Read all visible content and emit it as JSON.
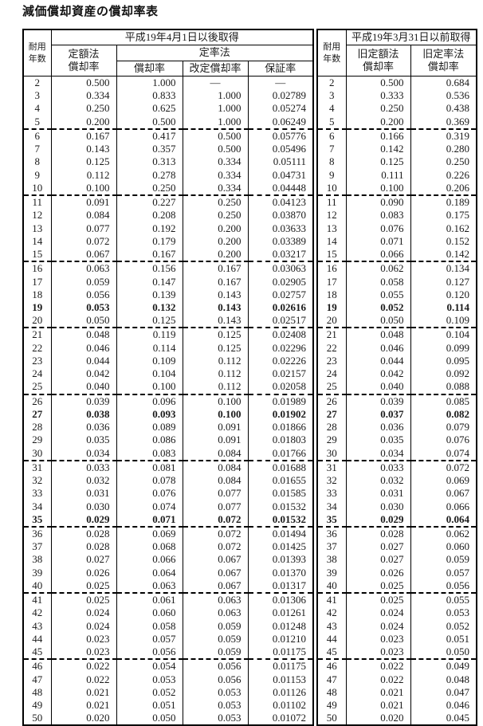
{
  "page_title": "減価償却資産の償却率表",
  "colors": {
    "background": "#ffffff",
    "border": "#000000",
    "text": "#1a1a1a"
  },
  "table": {
    "left": {
      "period_header": "平成19年4月1日以後取得",
      "year_label_l1": "耐用",
      "year_label_l2": "年数",
      "straight_line_l1": "定額法",
      "straight_line_l2": "償却率",
      "declining_group": "定率法",
      "declining_rate": "償却率",
      "revised_rate": "改定償却率",
      "guarantee_rate": "保証率"
    },
    "right": {
      "period_header": "平成19年3月31日以前取得",
      "year_label_l1": "耐用",
      "year_label_l2": "年数",
      "old_straight_l1": "旧定額法",
      "old_straight_l2": "償却率",
      "old_declining_l1": "旧定率法",
      "old_declining_l2": "償却率"
    },
    "bold_years": [
      19,
      27,
      35
    ],
    "group_end_years": [
      5,
      10,
      15,
      20,
      25,
      30,
      35,
      40,
      45
    ],
    "rows": [
      [
        2,
        "0.500",
        "1.000",
        "—",
        "—",
        "0.500",
        "0.684"
      ],
      [
        3,
        "0.334",
        "0.833",
        "1.000",
        "0.02789",
        "0.333",
        "0.536"
      ],
      [
        4,
        "0.250",
        "0.625",
        "1.000",
        "0.05274",
        "0.250",
        "0.438"
      ],
      [
        5,
        "0.200",
        "0.500",
        "1.000",
        "0.06249",
        "0.200",
        "0.369"
      ],
      [
        6,
        "0.167",
        "0.417",
        "0.500",
        "0.05776",
        "0.166",
        "0.319"
      ],
      [
        7,
        "0.143",
        "0.357",
        "0.500",
        "0.05496",
        "0.142",
        "0.280"
      ],
      [
        8,
        "0.125",
        "0.313",
        "0.334",
        "0.05111",
        "0.125",
        "0.250"
      ],
      [
        9,
        "0.112",
        "0.278",
        "0.334",
        "0.04731",
        "0.111",
        "0.226"
      ],
      [
        10,
        "0.100",
        "0.250",
        "0.334",
        "0.04448",
        "0.100",
        "0.206"
      ],
      [
        11,
        "0.091",
        "0.227",
        "0.250",
        "0.04123",
        "0.090",
        "0.189"
      ],
      [
        12,
        "0.084",
        "0.208",
        "0.250",
        "0.03870",
        "0.083",
        "0.175"
      ],
      [
        13,
        "0.077",
        "0.192",
        "0.200",
        "0.03633",
        "0.076",
        "0.162"
      ],
      [
        14,
        "0.072",
        "0.179",
        "0.200",
        "0.03389",
        "0.071",
        "0.152"
      ],
      [
        15,
        "0.067",
        "0.167",
        "0.200",
        "0.03217",
        "0.066",
        "0.142"
      ],
      [
        16,
        "0.063",
        "0.156",
        "0.167",
        "0.03063",
        "0.062",
        "0.134"
      ],
      [
        17,
        "0.059",
        "0.147",
        "0.167",
        "0.02905",
        "0.058",
        "0.127"
      ],
      [
        18,
        "0.056",
        "0.139",
        "0.143",
        "0.02757",
        "0.055",
        "0.120"
      ],
      [
        19,
        "0.053",
        "0.132",
        "0.143",
        "0.02616",
        "0.052",
        "0.114"
      ],
      [
        20,
        "0.050",
        "0.125",
        "0.143",
        "0.02517",
        "0.050",
        "0.109"
      ],
      [
        21,
        "0.048",
        "0.119",
        "0.125",
        "0.02408",
        "0.048",
        "0.104"
      ],
      [
        22,
        "0.046",
        "0.114",
        "0.125",
        "0.02296",
        "0.046",
        "0.099"
      ],
      [
        23,
        "0.044",
        "0.109",
        "0.112",
        "0.02226",
        "0.044",
        "0.095"
      ],
      [
        24,
        "0.042",
        "0.104",
        "0.112",
        "0.02157",
        "0.042",
        "0.092"
      ],
      [
        25,
        "0.040",
        "0.100",
        "0.112",
        "0.02058",
        "0.040",
        "0.088"
      ],
      [
        26,
        "0.039",
        "0.096",
        "0.100",
        "0.01989",
        "0.039",
        "0.085"
      ],
      [
        27,
        "0.038",
        "0.093",
        "0.100",
        "0.01902",
        "0.037",
        "0.082"
      ],
      [
        28,
        "0.036",
        "0.089",
        "0.091",
        "0.01866",
        "0.036",
        "0.079"
      ],
      [
        29,
        "0.035",
        "0.086",
        "0.091",
        "0.01803",
        "0.035",
        "0.076"
      ],
      [
        30,
        "0.034",
        "0.083",
        "0.084",
        "0.01766",
        "0.034",
        "0.074"
      ],
      [
        31,
        "0.033",
        "0.081",
        "0.084",
        "0.01688",
        "0.033",
        "0.072"
      ],
      [
        32,
        "0.032",
        "0.078",
        "0.084",
        "0.01655",
        "0.032",
        "0.069"
      ],
      [
        33,
        "0.031",
        "0.076",
        "0.077",
        "0.01585",
        "0.031",
        "0.067"
      ],
      [
        34,
        "0.030",
        "0.074",
        "0.077",
        "0.01532",
        "0.030",
        "0.066"
      ],
      [
        35,
        "0.029",
        "0.071",
        "0.072",
        "0.01532",
        "0.029",
        "0.064"
      ],
      [
        36,
        "0.028",
        "0.069",
        "0.072",
        "0.01494",
        "0.028",
        "0.062"
      ],
      [
        37,
        "0.028",
        "0.068",
        "0.072",
        "0.01425",
        "0.027",
        "0.060"
      ],
      [
        38,
        "0.027",
        "0.066",
        "0.067",
        "0.01393",
        "0.027",
        "0.059"
      ],
      [
        39,
        "0.026",
        "0.064",
        "0.067",
        "0.01370",
        "0.026",
        "0.057"
      ],
      [
        40,
        "0.025",
        "0.063",
        "0.067",
        "0.01317",
        "0.025",
        "0.056"
      ],
      [
        41,
        "0.025",
        "0.061",
        "0.063",
        "0.01306",
        "0.025",
        "0.055"
      ],
      [
        42,
        "0.024",
        "0.060",
        "0.063",
        "0.01261",
        "0.024",
        "0.053"
      ],
      [
        43,
        "0.024",
        "0.058",
        "0.059",
        "0.01248",
        "0.024",
        "0.052"
      ],
      [
        44,
        "0.023",
        "0.057",
        "0.059",
        "0.01210",
        "0.023",
        "0.051"
      ],
      [
        45,
        "0.023",
        "0.056",
        "0.059",
        "0.01175",
        "0.023",
        "0.050"
      ],
      [
        46,
        "0.022",
        "0.054",
        "0.056",
        "0.01175",
        "0.022",
        "0.049"
      ],
      [
        47,
        "0.022",
        "0.053",
        "0.056",
        "0.01153",
        "0.022",
        "0.048"
      ],
      [
        48,
        "0.021",
        "0.052",
        "0.053",
        "0.01126",
        "0.021",
        "0.047"
      ],
      [
        49,
        "0.021",
        "0.051",
        "0.053",
        "0.01102",
        "0.021",
        "0.046"
      ],
      [
        50,
        "0.020",
        "0.050",
        "0.053",
        "0.01072",
        "0.020",
        "0.045"
      ]
    ]
  }
}
